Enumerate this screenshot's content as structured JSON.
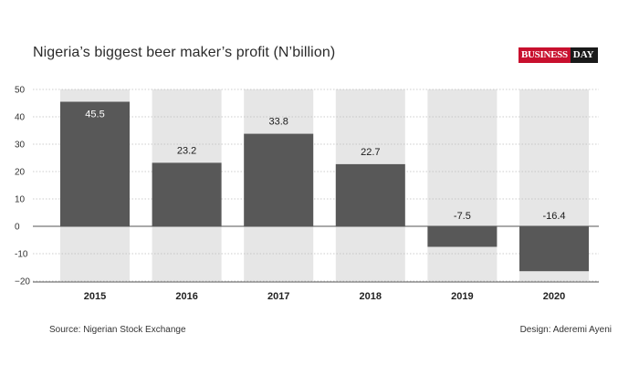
{
  "title": "Nigeria’s biggest beer maker’s profit (N’billion)",
  "logo": {
    "part1": "BUSINESS",
    "part2": "DAY"
  },
  "source": "Source: Nigerian Stock Exchange",
  "design": "Design: Aderemi Ayeni",
  "colors": {
    "bar": "#585858",
    "band": "#e6e6e6",
    "label_dark": "#1a1a1a",
    "label_light": "#ffffff"
  },
  "chart_data": {
    "type": "bar",
    "categories": [
      "2015",
      "2016",
      "2017",
      "2018",
      "2019",
      "2020"
    ],
    "values": [
      45.5,
      23.2,
      33.8,
      22.7,
      -7.5,
      -16.4
    ],
    "data_labels": [
      "45.5",
      "23.2",
      "33.8",
      "22.7",
      "-7.5",
      "-16.4"
    ],
    "ylim": [
      -20,
      50
    ],
    "yticks": [
      50,
      40,
      30,
      20,
      10,
      0,
      -10,
      -20
    ],
    "ytick_labels": [
      "50",
      "40",
      "30",
      "20",
      "10",
      "0",
      "-10",
      "−20"
    ],
    "grid": true
  }
}
